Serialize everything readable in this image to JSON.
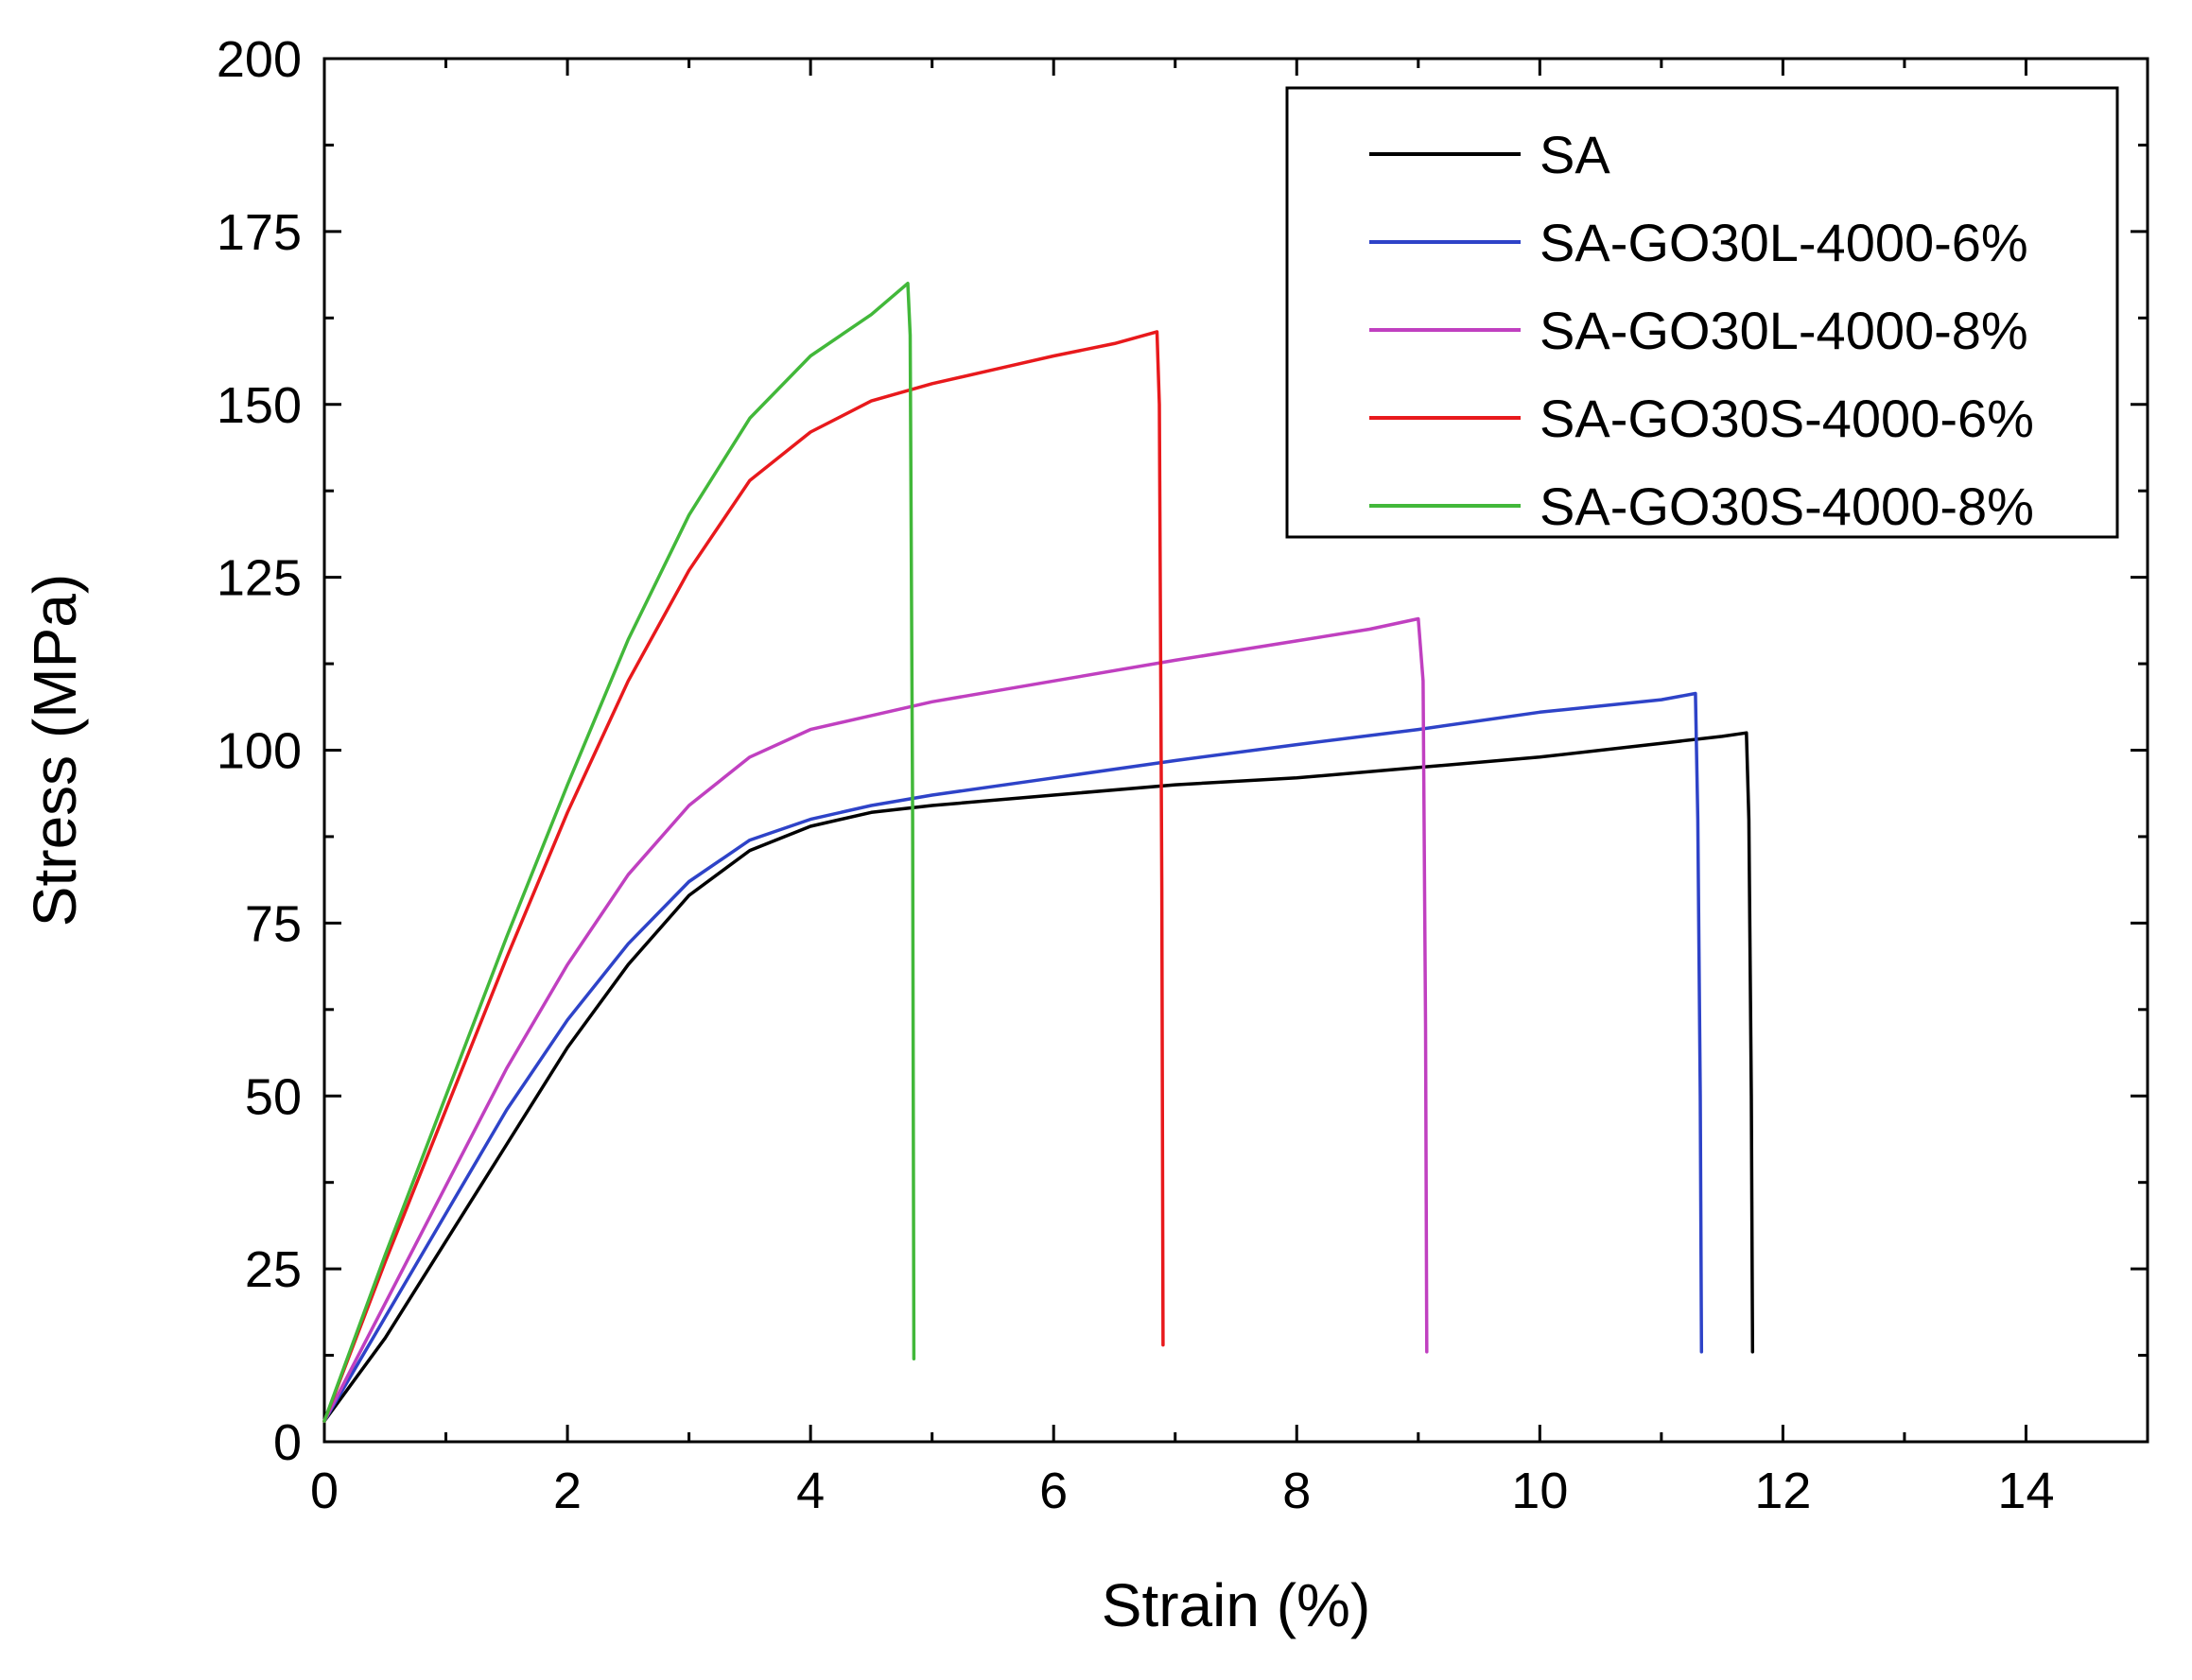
{
  "chart_data": {
    "type": "line",
    "title": "",
    "xlabel": "Strain (%)",
    "ylabel": "Stress (MPa)",
    "xlim": [
      0,
      15
    ],
    "ylim": [
      0,
      200
    ],
    "xticks": [
      0,
      2,
      4,
      6,
      8,
      10,
      12,
      14
    ],
    "yticks": [
      0,
      25,
      50,
      75,
      100,
      125,
      150,
      175,
      200
    ],
    "xtick_labels": [
      "0",
      "2",
      "4",
      "6",
      "8",
      "10",
      "12",
      "14"
    ],
    "ytick_labels": [
      "0",
      "25",
      "50",
      "75",
      "100",
      "125",
      "150",
      "175",
      "200"
    ],
    "grid": false,
    "legend_position": "top-right",
    "series": [
      {
        "name": "SA",
        "color": "#000000",
        "points": [
          [
            0,
            3
          ],
          [
            0.5,
            15
          ],
          [
            1,
            29
          ],
          [
            1.5,
            43
          ],
          [
            2,
            57
          ],
          [
            2.5,
            69
          ],
          [
            3,
            79
          ],
          [
            3.5,
            85.5
          ],
          [
            4,
            89
          ],
          [
            4.5,
            91
          ],
          [
            5,
            92
          ],
          [
            6,
            93.5
          ],
          [
            7,
            95
          ],
          [
            8,
            96
          ],
          [
            9,
            97.5
          ],
          [
            10,
            99
          ],
          [
            11,
            101
          ],
          [
            11.5,
            102
          ],
          [
            11.7,
            102.5
          ],
          [
            11.72,
            90
          ],
          [
            11.74,
            50
          ],
          [
            11.75,
            13
          ]
        ]
      },
      {
        "name": "SA-GO30L-4000-6%",
        "color": "#2e43c8",
        "points": [
          [
            0,
            3
          ],
          [
            0.5,
            18
          ],
          [
            1,
            33
          ],
          [
            1.5,
            48
          ],
          [
            2,
            61
          ],
          [
            2.5,
            72
          ],
          [
            3,
            81
          ],
          [
            3.5,
            87
          ],
          [
            4,
            90
          ],
          [
            4.5,
            92
          ],
          [
            5,
            93.5
          ],
          [
            6,
            96
          ],
          [
            7,
            98.5
          ],
          [
            8,
            100.8
          ],
          [
            9,
            103
          ],
          [
            10,
            105.5
          ],
          [
            11,
            107.3
          ],
          [
            11.28,
            108.2
          ],
          [
            11.3,
            90
          ],
          [
            11.32,
            50
          ],
          [
            11.33,
            13
          ]
        ]
      },
      {
        "name": "SA-GO30L-4000-8%",
        "color": "#c040c0",
        "points": [
          [
            0,
            3
          ],
          [
            0.5,
            20
          ],
          [
            1,
            37
          ],
          [
            1.5,
            54
          ],
          [
            2,
            69
          ],
          [
            2.5,
            82
          ],
          [
            3,
            92
          ],
          [
            3.5,
            99
          ],
          [
            4,
            103
          ],
          [
            4.5,
            105
          ],
          [
            5,
            107
          ],
          [
            6,
            110
          ],
          [
            7,
            113
          ],
          [
            8,
            115.8
          ],
          [
            8.6,
            117.5
          ],
          [
            9,
            119
          ],
          [
            9.04,
            110
          ],
          [
            9.06,
            60
          ],
          [
            9.07,
            13
          ]
        ]
      },
      {
        "name": "SA-GO30S-4000-6%",
        "color": "#e8191c",
        "points": [
          [
            0,
            3
          ],
          [
            0.5,
            26
          ],
          [
            1,
            48
          ],
          [
            1.5,
            70
          ],
          [
            2,
            91
          ],
          [
            2.5,
            110
          ],
          [
            3,
            126
          ],
          [
            3.5,
            139
          ],
          [
            4,
            146
          ],
          [
            4.5,
            150.5
          ],
          [
            5,
            153
          ],
          [
            5.5,
            155
          ],
          [
            6,
            157
          ],
          [
            6.5,
            158.8
          ],
          [
            6.85,
            160.5
          ],
          [
            6.87,
            150
          ],
          [
            6.89,
            80
          ],
          [
            6.9,
            14
          ]
        ]
      },
      {
        "name": "SA-GO30S-4000-8%",
        "color": "#42b83a",
        "points": [
          [
            0,
            3
          ],
          [
            0.5,
            27
          ],
          [
            1,
            50
          ],
          [
            1.5,
            73
          ],
          [
            2,
            95
          ],
          [
            2.5,
            116
          ],
          [
            3,
            134
          ],
          [
            3.5,
            148
          ],
          [
            4,
            157
          ],
          [
            4.5,
            163
          ],
          [
            4.8,
            167.5
          ],
          [
            4.82,
            160
          ],
          [
            4.84,
            90
          ],
          [
            4.85,
            12
          ]
        ]
      }
    ]
  }
}
